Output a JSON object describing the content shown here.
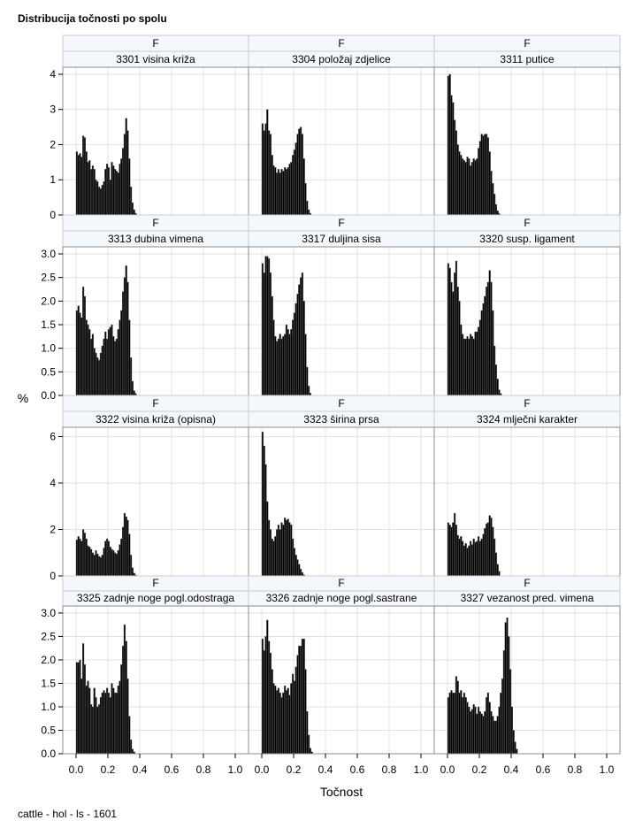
{
  "title": "Distribucija točnosti po spolu",
  "footnote": "cattle - hol - ls - 1601",
  "chart_data": {
    "type": "histogram-panel",
    "xlabel": "Točnost",
    "ylabel": "%",
    "xlim": [
      0,
      1
    ],
    "xticks": [
      "0.0",
      "0.2",
      "0.4",
      "0.6",
      "0.8",
      "1.0"
    ],
    "grid": true,
    "rows": [
      {
        "ylim": [
          0,
          4.2
        ],
        "yticks": [
          0,
          1,
          2,
          3,
          4
        ],
        "ytick_labels": [
          "0",
          "1",
          "2",
          "3",
          "4"
        ]
      },
      {
        "ylim": [
          0,
          3.15
        ],
        "yticks": [
          0,
          0.5,
          1,
          1.5,
          2,
          2.5,
          3
        ],
        "ytick_labels": [
          "0.0",
          "0.5",
          "1.0",
          "1.5",
          "2.0",
          "2.5",
          "3.0"
        ]
      },
      {
        "ylim": [
          0,
          6.4
        ],
        "yticks": [
          0,
          2,
          4,
          6
        ],
        "ytick_labels": [
          "0",
          "2",
          "4",
          "6"
        ]
      },
      {
        "ylim": [
          0,
          3.15
        ],
        "yticks": [
          0,
          0.5,
          1,
          1.5,
          2,
          2.5,
          3
        ],
        "ytick_labels": [
          "0.0",
          "0.5",
          "1.0",
          "1.5",
          "2.0",
          "2.5",
          "3.0"
        ]
      }
    ],
    "panels": [
      {
        "sex": "F",
        "trait": "3301 visina križa",
        "row": 0,
        "col": 0,
        "bin_width": 0.01,
        "x_start": 0.0,
        "values": [
          1.8,
          1.7,
          1.75,
          1.65,
          2.25,
          2.2,
          1.8,
          1.5,
          1.55,
          1.3,
          1.4,
          1.3,
          1.0,
          0.95,
          0.8,
          0.75,
          0.85,
          0.95,
          1.3,
          1.45,
          1.35,
          1.0,
          1.5,
          1.4,
          1.3,
          1.25,
          1.2,
          1.45,
          1.6,
          1.9,
          2.3,
          2.75,
          2.4,
          1.6,
          0.8,
          0.35,
          0.15,
          0.05
        ]
      },
      {
        "sex": "F",
        "trait": "3304 položaj zdjelice",
        "row": 0,
        "col": 1,
        "bin_width": 0.01,
        "x_start": 0.0,
        "values": [
          2.6,
          2.4,
          2.6,
          3.0,
          2.4,
          2.3,
          1.7,
          1.4,
          1.35,
          1.2,
          1.3,
          1.2,
          1.3,
          1.25,
          1.35,
          1.3,
          1.35,
          1.45,
          1.5,
          1.7,
          1.85,
          2.05,
          2.3,
          2.45,
          2.5,
          2.3,
          1.6,
          0.9,
          0.4,
          0.15,
          0.05
        ]
      },
      {
        "sex": "F",
        "trait": "3311 putice",
        "row": 0,
        "col": 2,
        "bin_width": 0.01,
        "x_start": 0.0,
        "values": [
          3.95,
          4.0,
          3.4,
          3.2,
          2.7,
          2.4,
          2.0,
          1.8,
          1.7,
          1.6,
          1.55,
          1.5,
          1.65,
          1.6,
          1.4,
          1.5,
          1.6,
          1.55,
          1.6,
          1.9,
          2.1,
          2.3,
          2.25,
          2.3,
          2.3,
          2.2,
          1.8,
          1.25,
          0.9,
          0.6,
          0.3,
          0.12,
          0.04
        ]
      },
      {
        "sex": "F",
        "trait": "3313 dubina vimena",
        "row": 1,
        "col": 0,
        "bin_width": 0.01,
        "x_start": 0.0,
        "values": [
          1.8,
          1.9,
          1.75,
          1.65,
          2.3,
          2.1,
          1.6,
          1.5,
          1.4,
          1.2,
          1.3,
          1.0,
          0.9,
          0.8,
          0.75,
          0.9,
          1.05,
          1.2,
          1.35,
          1.2,
          1.4,
          1.45,
          1.5,
          1.25,
          1.15,
          1.2,
          1.4,
          1.6,
          1.8,
          2.2,
          2.5,
          2.75,
          2.4,
          1.6,
          0.8,
          0.3,
          0.1,
          0.04
        ]
      },
      {
        "sex": "F",
        "trait": "3317 duljina sisa",
        "row": 1,
        "col": 1,
        "bin_width": 0.01,
        "x_start": 0.0,
        "values": [
          2.8,
          2.6,
          2.95,
          2.95,
          2.9,
          2.6,
          2.1,
          1.6,
          1.25,
          1.15,
          1.2,
          1.3,
          1.2,
          1.25,
          1.3,
          1.5,
          1.4,
          1.3,
          1.4,
          1.6,
          1.75,
          1.95,
          2.15,
          2.35,
          2.5,
          2.6,
          2.0,
          1.3,
          0.6,
          0.2,
          0.05
        ]
      },
      {
        "sex": "F",
        "trait": "3320 susp. ligament",
        "row": 1,
        "col": 2,
        "bin_width": 0.01,
        "x_start": 0.0,
        "values": [
          2.8,
          2.7,
          2.4,
          2.2,
          2.6,
          2.85,
          2.3,
          2.0,
          1.5,
          1.3,
          1.2,
          1.2,
          1.25,
          1.2,
          1.3,
          1.25,
          1.2,
          1.35,
          1.35,
          1.45,
          1.6,
          1.8,
          1.95,
          2.1,
          2.3,
          2.4,
          2.65,
          2.4,
          1.8,
          1.05,
          0.65,
          0.35,
          0.12,
          0.04
        ]
      },
      {
        "sex": "F",
        "trait": "3322 visina križa (opisna)",
        "row": 2,
        "col": 0,
        "bin_width": 0.01,
        "x_start": 0.0,
        "values": [
          1.55,
          1.7,
          1.6,
          1.5,
          2.0,
          1.85,
          1.6,
          1.3,
          1.25,
          1.15,
          1.0,
          0.9,
          1.1,
          0.95,
          0.85,
          0.8,
          0.9,
          1.2,
          1.5,
          1.6,
          1.5,
          1.25,
          1.15,
          1.1,
          1.0,
          0.95,
          1.1,
          1.35,
          1.6,
          2.1,
          2.7,
          2.55,
          2.4,
          1.8,
          0.9,
          0.35,
          0.12,
          0.04
        ]
      },
      {
        "sex": "F",
        "trait": "3323 širina prsa",
        "row": 2,
        "col": 1,
        "bin_width": 0.01,
        "x_start": 0.0,
        "values": [
          6.2,
          5.6,
          4.8,
          3.2,
          2.4,
          2.0,
          1.6,
          1.5,
          1.7,
          2.0,
          2.2,
          2.0,
          2.3,
          2.2,
          2.5,
          2.4,
          2.45,
          2.3,
          2.2,
          1.6,
          1.2,
          0.9,
          0.7,
          0.5,
          0.3,
          0.15,
          0.05
        ]
      },
      {
        "sex": "F",
        "trait": "3324 mlječni karakter",
        "row": 2,
        "col": 2,
        "bin_width": 0.01,
        "x_start": 0.0,
        "values": [
          2.3,
          2.2,
          2.1,
          2.3,
          2.7,
          2.2,
          1.75,
          1.6,
          1.7,
          1.5,
          1.3,
          1.4,
          1.2,
          1.3,
          1.5,
          1.35,
          1.6,
          1.45,
          1.5,
          1.7,
          1.5,
          1.6,
          1.8,
          2.05,
          2.25,
          2.3,
          2.6,
          2.5,
          2.1,
          1.6,
          1.0,
          0.5,
          0.2
        ]
      },
      {
        "sex": "F",
        "trait": "3325 zadnje noge pogl.odostraga",
        "row": 3,
        "col": 0,
        "bin_width": 0.01,
        "x_start": 0.0,
        "values": [
          1.95,
          1.95,
          2.0,
          1.6,
          2.35,
          1.9,
          1.45,
          1.55,
          1.4,
          1.05,
          1.0,
          1.4,
          1.2,
          1.0,
          1.05,
          1.2,
          1.3,
          1.35,
          1.3,
          1.4,
          1.3,
          1.2,
          1.5,
          1.4,
          1.3,
          1.3,
          1.45,
          1.55,
          1.9,
          2.3,
          2.75,
          2.4,
          1.6,
          0.8,
          0.3,
          0.1,
          0.04
        ]
      },
      {
        "sex": "F",
        "trait": "3326 zadnje noge pogl.sastrane",
        "row": 3,
        "col": 1,
        "bin_width": 0.01,
        "x_start": 0.0,
        "values": [
          2.45,
          2.2,
          2.5,
          2.85,
          2.4,
          2.15,
          1.8,
          1.5,
          1.45,
          1.35,
          1.4,
          1.3,
          1.2,
          1.3,
          1.45,
          1.35,
          1.4,
          1.25,
          1.5,
          1.7,
          1.55,
          1.85,
          2.1,
          2.3,
          2.3,
          2.45,
          2.45,
          1.8,
          0.9,
          0.4,
          0.12,
          0.04
        ]
      },
      {
        "sex": "F",
        "trait": "3327 vezanost pred. vimena",
        "row": 3,
        "col": 2,
        "bin_width": 0.01,
        "x_start": 0.0,
        "values": [
          1.2,
          1.3,
          1.35,
          1.3,
          1.3,
          1.65,
          1.55,
          1.3,
          1.35,
          1.2,
          1.3,
          1.2,
          1.1,
          1.0,
          0.9,
          0.95,
          1.05,
          1.0,
          0.85,
          1.0,
          0.9,
          0.85,
          0.8,
          0.9,
          1.2,
          1.3,
          1.1,
          0.9,
          0.8,
          0.7,
          0.7,
          0.8,
          1.0,
          1.3,
          1.6,
          2.2,
          2.8,
          2.9,
          2.5,
          1.8,
          1.0,
          0.5,
          0.25,
          0.1
        ]
      }
    ]
  }
}
